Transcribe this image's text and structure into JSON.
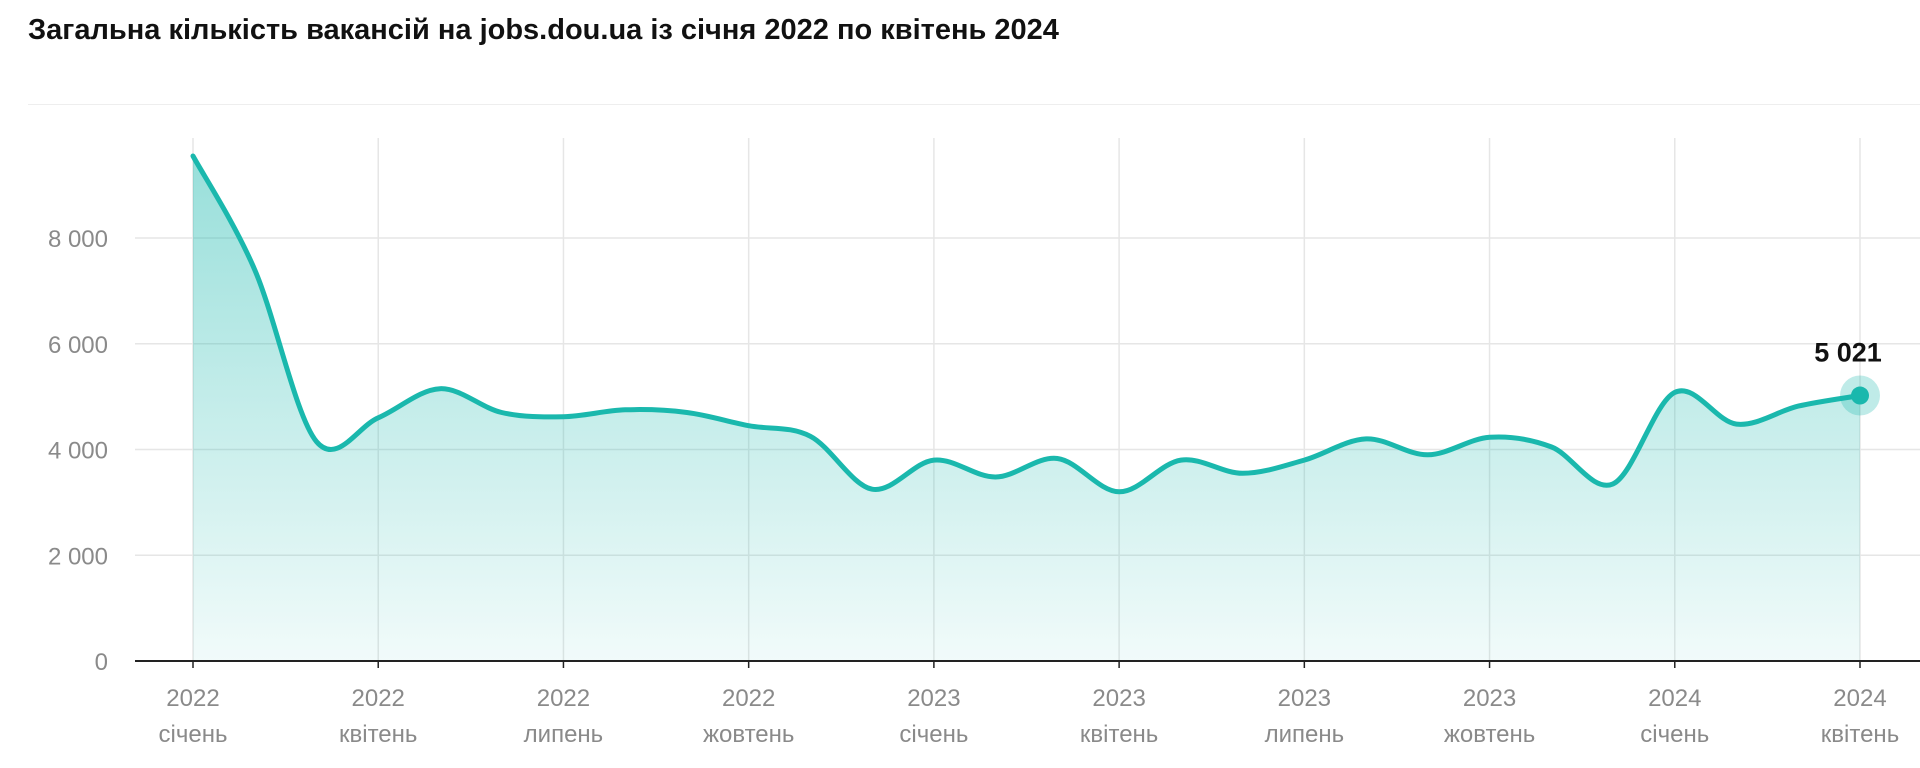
{
  "title": "Загальна кількість вакансій на jobs.dou.ua із січня 2022 по квітень 2024",
  "colors": {
    "line": "#1ab8ad",
    "fill": "#bfece7",
    "axis": "#222222",
    "grid": "#e6e6e6",
    "text": "#8a8a8a"
  },
  "chart_data": {
    "type": "area",
    "title": "Загальна кількість вакансій на jobs.dou.ua із січня 2022 по квітень 2024",
    "xlabel": "",
    "ylabel": "",
    "ylim": [
      0,
      10000
    ],
    "yticks": [
      0,
      2000,
      4000,
      6000,
      8000
    ],
    "ytick_labels": [
      "0",
      "2 000",
      "4 000",
      "6 000",
      "8 000"
    ],
    "grid": true,
    "x_ticks": [
      {
        "year": "2022",
        "month": "січень"
      },
      {
        "year": "2022",
        "month": "квітень"
      },
      {
        "year": "2022",
        "month": "липень"
      },
      {
        "year": "2022",
        "month": "жовтень"
      },
      {
        "year": "2023",
        "month": "січень"
      },
      {
        "year": "2023",
        "month": "квітень"
      },
      {
        "year": "2023",
        "month": "липень"
      },
      {
        "year": "2023",
        "month": "жовтень"
      },
      {
        "year": "2024",
        "month": "січень"
      },
      {
        "year": "2024",
        "month": "квітень"
      }
    ],
    "x": [
      "2022-01",
      "2022-02",
      "2022-03",
      "2022-04",
      "2022-05",
      "2022-06",
      "2022-07",
      "2022-08",
      "2022-09",
      "2022-10",
      "2022-11",
      "2022-12",
      "2023-01",
      "2023-02",
      "2023-03",
      "2023-04",
      "2023-05",
      "2023-06",
      "2023-07",
      "2023-08",
      "2023-09",
      "2023-10",
      "2023-11",
      "2023-12",
      "2024-01",
      "2024-02",
      "2024-03",
      "2024-04"
    ],
    "series": [
      {
        "values": [
          9550,
          7400,
          4150,
          4600,
          5150,
          4700,
          4620,
          4750,
          4700,
          4450,
          4250,
          3250,
          3800,
          3480,
          3830,
          3200,
          3800,
          3550,
          3800,
          4200,
          3900,
          4230,
          4050,
          3350,
          5080,
          4480,
          4820,
          5021
        ]
      }
    ],
    "data_label": "5 021"
  }
}
